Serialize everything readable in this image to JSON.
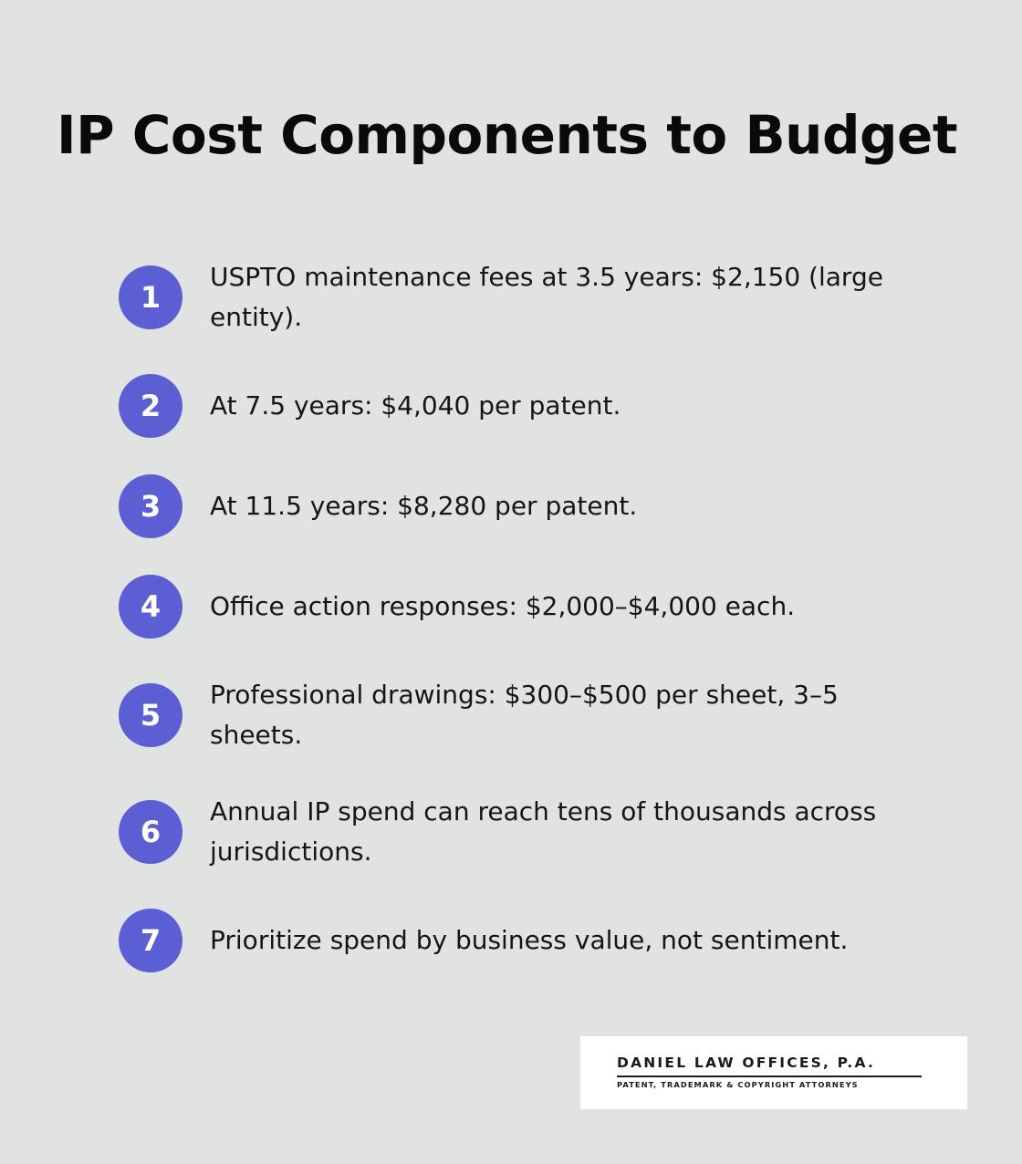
{
  "title": "IP Cost Components to Budget",
  "accent_color": "#5c5fd4",
  "items": [
    {
      "number": "1",
      "text": "USPTO maintenance fees at 3.5 years: $2,150 (large entity)."
    },
    {
      "number": "2",
      "text": "At 7.5 years: $4,040 per patent."
    },
    {
      "number": "3",
      "text": "At 11.5 years: $8,280 per patent."
    },
    {
      "number": "4",
      "text": "Office action responses: $2,000–$4,000 each."
    },
    {
      "number": "5",
      "text": "Professional drawings: $300–$500 per sheet, 3–5 sheets."
    },
    {
      "number": "6",
      "text": "Annual IP spend can reach tens of thousands across jurisdictions."
    },
    {
      "number": "7",
      "text": "Prioritize spend by business value, not sentiment."
    }
  ],
  "logo": {
    "name": "DANIEL LAW OFFICES, P.A.",
    "tagline": "PATENT, TRADEMARK & COPYRIGHT ATTORNEYS"
  }
}
